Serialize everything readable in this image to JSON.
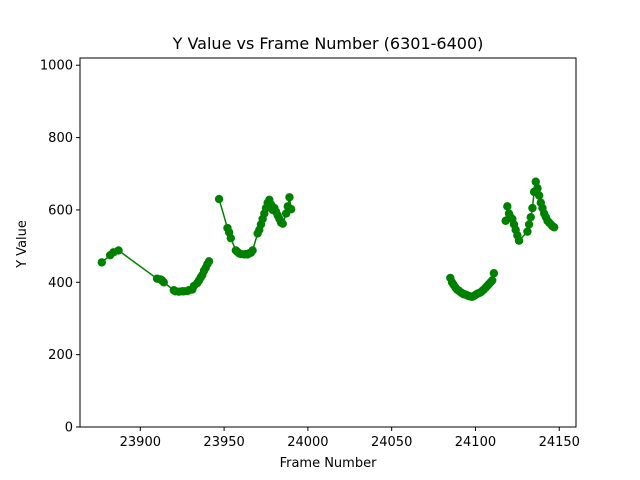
{
  "chart_data": {
    "type": "scatter",
    "title": "Y Value vs Frame Number (6301-6400)",
    "xlabel": "Frame Number",
    "ylabel": "Y Value",
    "xlim": [
      23864,
      24160
    ],
    "ylim": [
      0,
      1020
    ],
    "xticks": [
      23900,
      23950,
      24000,
      24050,
      24100,
      24150
    ],
    "yticks": [
      0,
      200,
      400,
      600,
      800,
      1000
    ],
    "grid": false,
    "marker_color": "#008000",
    "line_color": "#008000",
    "series": [
      {
        "x": [
          23877,
          23882,
          23884,
          23887,
          23910,
          23912,
          23913,
          23914,
          23920,
          23921,
          23923,
          23925,
          23926,
          23928,
          23929,
          23931,
          23932,
          23934,
          23935,
          23936,
          23937,
          23938,
          23939,
          23940,
          23941
        ],
        "y": [
          455,
          475,
          483,
          488,
          410,
          408,
          405,
          400,
          378,
          375,
          374,
          375,
          375,
          376,
          378,
          380,
          390,
          398,
          405,
          413,
          420,
          432,
          440,
          450,
          458
        ]
      },
      {
        "x": [
          23947,
          23952,
          23953,
          23954,
          23957,
          23958,
          23959,
          23960,
          23962,
          23963,
          23964,
          23965,
          23966,
          23967,
          23970,
          23971,
          23972,
          23973,
          23974,
          23975,
          23976,
          23977,
          23978,
          23979,
          23980,
          23981,
          23982,
          23983,
          23984,
          23985,
          23987,
          23988,
          23989,
          23990
        ],
        "y": [
          630,
          550,
          538,
          522,
          488,
          484,
          480,
          478,
          477,
          478,
          477,
          480,
          482,
          488,
          535,
          545,
          560,
          575,
          590,
          605,
          620,
          628,
          615,
          600,
          605,
          595,
          585,
          575,
          565,
          562,
          590,
          610,
          635,
          602
        ]
      },
      {
        "x": [
          24085,
          24086,
          24087,
          24088,
          24089,
          24090,
          24091,
          24092,
          24093,
          24094,
          24095,
          24096,
          24097,
          24098,
          24099,
          24100,
          24101,
          24102,
          24103,
          24104,
          24105,
          24106,
          24107,
          24108,
          24109,
          24110,
          24111
        ],
        "y": [
          412,
          400,
          393,
          386,
          380,
          377,
          373,
          370,
          367,
          366,
          364,
          362,
          361,
          360,
          362,
          365,
          368,
          370,
          372,
          376,
          380,
          385,
          390,
          395,
          400,
          405,
          425
        ]
      },
      {
        "x": [
          24118,
          24119,
          24120,
          24121,
          24122,
          24123,
          24124,
          24125,
          24126,
          24131,
          24132,
          24133,
          24134,
          24135,
          24136,
          24137,
          24138,
          24139,
          24140,
          24141,
          24142,
          24143,
          24144,
          24145,
          24146,
          24147
        ],
        "y": [
          570,
          610,
          590,
          580,
          575,
          560,
          545,
          530,
          515,
          540,
          560,
          580,
          605,
          650,
          678,
          660,
          640,
          620,
          605,
          590,
          580,
          570,
          565,
          560,
          555,
          552
        ]
      }
    ]
  }
}
